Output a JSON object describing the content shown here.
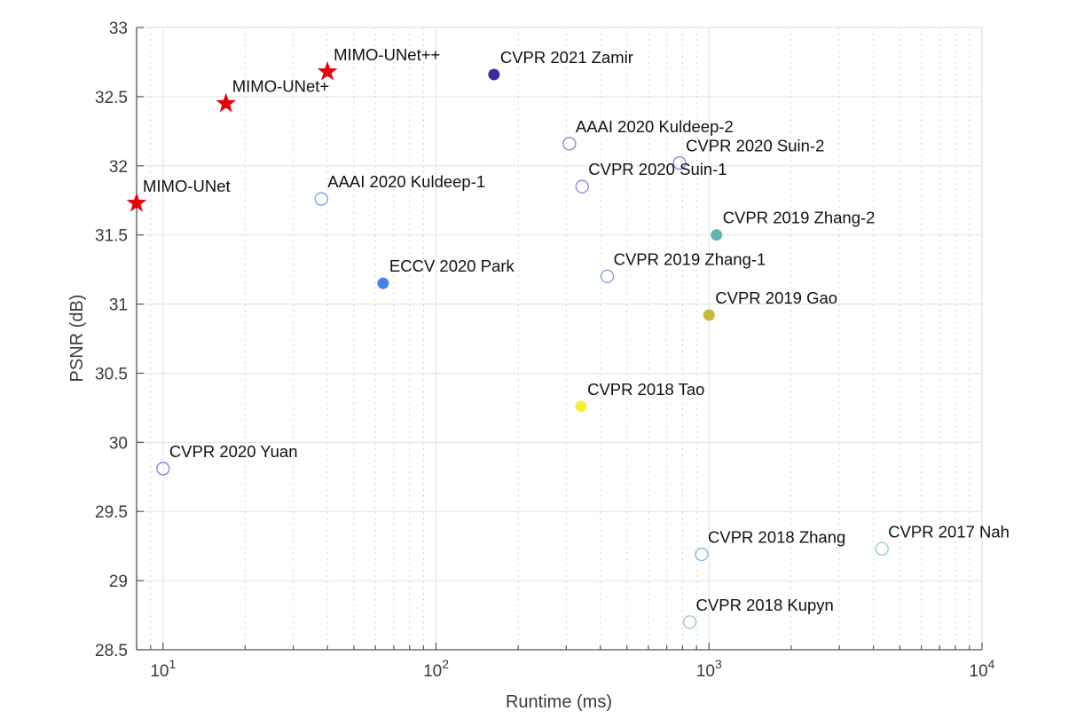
{
  "chart_data": {
    "type": "scatter",
    "title": "",
    "xlabel": "Runtime (ms)",
    "ylabel": "PSNR (dB)",
    "xscale": "log",
    "xlim": [
      8,
      10000
    ],
    "ylim": [
      28.5,
      33
    ],
    "grid": true,
    "minor_grid": true,
    "legend": "none",
    "x_ticks": [
      {
        "value": 10,
        "base": "10",
        "exp": "1"
      },
      {
        "value": 100,
        "base": "10",
        "exp": "2"
      },
      {
        "value": 1000,
        "base": "10",
        "exp": "3"
      },
      {
        "value": 10000,
        "base": "10",
        "exp": "4"
      }
    ],
    "y_ticks": [
      {
        "value": 28.5,
        "label": "28.5"
      },
      {
        "value": 29,
        "label": "29"
      },
      {
        "value": 29.5,
        "label": "29.5"
      },
      {
        "value": 30,
        "label": "30"
      },
      {
        "value": 30.5,
        "label": "30.5"
      },
      {
        "value": 31,
        "label": "31"
      },
      {
        "value": 31.5,
        "label": "31.5"
      },
      {
        "value": 32,
        "label": "32"
      },
      {
        "value": 32.5,
        "label": "32.5"
      },
      {
        "value": 33,
        "label": "33"
      }
    ],
    "points": [
      {
        "label": "MIMO-UNet",
        "x": 8,
        "y": 31.73,
        "marker": "star",
        "filled": true,
        "color": "#e8000b"
      },
      {
        "label": "MIMO-UNet+",
        "x": 17,
        "y": 32.45,
        "marker": "star",
        "filled": true,
        "color": "#e8000b"
      },
      {
        "label": "MIMO-UNet++",
        "x": 40,
        "y": 32.68,
        "marker": "star",
        "filled": true,
        "color": "#e8000b"
      },
      {
        "label": "CVPR 2021 Zamir",
        "x": 163,
        "y": 32.66,
        "marker": "circle",
        "filled": true,
        "color": "#3b2c9e"
      },
      {
        "label": "AAAI 2020 Kuldeep-2",
        "x": 308,
        "y": 32.16,
        "marker": "circle",
        "filled": false,
        "color": "#7f7fe0"
      },
      {
        "label": "CVPR 2020 Suin-2",
        "x": 780,
        "y": 32.02,
        "marker": "circle",
        "filled": false,
        "color": "#7f7fe0"
      },
      {
        "label": "CVPR 2020 Suin-1",
        "x": 343,
        "y": 31.85,
        "marker": "circle",
        "filled": false,
        "color": "#7f7fe0"
      },
      {
        "label": "AAAI 2020 Kuldeep-1",
        "x": 38,
        "y": 31.76,
        "marker": "circle",
        "filled": false,
        "color": "#7f9ce8"
      },
      {
        "label": "CVPR 2019 Zhang-2",
        "x": 1065,
        "y": 31.5,
        "marker": "circle",
        "filled": true,
        "color": "#5fb8ae"
      },
      {
        "label": "ECCV 2020 Park",
        "x": 64,
        "y": 31.15,
        "marker": "circle",
        "filled": true,
        "color": "#4a7ff0"
      },
      {
        "label": "CVPR 2019 Zhang-1",
        "x": 424,
        "y": 31.2,
        "marker": "circle",
        "filled": false,
        "color": "#7f9ce8"
      },
      {
        "label": "CVPR 2019 Gao",
        "x": 1000,
        "y": 30.92,
        "marker": "circle",
        "filled": true,
        "color": "#c6b93a"
      },
      {
        "label": "CVPR 2018 Tao",
        "x": 340,
        "y": 30.26,
        "marker": "circle",
        "filled": true,
        "color": "#f2ee3a"
      },
      {
        "label": "CVPR 2020 Yuan",
        "x": 10,
        "y": 29.81,
        "marker": "circle",
        "filled": false,
        "color": "#7f7fd0"
      },
      {
        "label": "CVPR 2018 Zhang",
        "x": 940,
        "y": 29.19,
        "marker": "circle",
        "filled": false,
        "color": "#7ab3de"
      },
      {
        "label": "CVPR 2017 Nah",
        "x": 4300,
        "y": 29.23,
        "marker": "circle",
        "filled": false,
        "color": "#8fd0cc"
      },
      {
        "label": "CVPR 2018 Kupyn",
        "x": 850,
        "y": 28.7,
        "marker": "circle",
        "filled": false,
        "color": "#8cc8dc"
      }
    ]
  }
}
